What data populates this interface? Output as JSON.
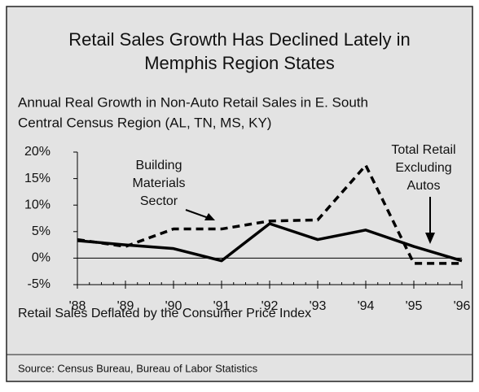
{
  "chart_data": {
    "type": "line",
    "title": [
      "Retail Sales Growth Has Declined Lately in",
      "Memphis Region States"
    ],
    "subtitle": [
      "Annual Real Growth in Non-Auto Retail Sales in E. South",
      "Central Census Region (AL, TN, MS, KY)"
    ],
    "categories": [
      "'88",
      "'89",
      "'90",
      "'91",
      "'92",
      "'93",
      "'94",
      "'95",
      "'96"
    ],
    "series": [
      {
        "name": "Total Retail Excluding Autos",
        "color": "#000000",
        "dash": "solid",
        "values": [
          3.3,
          2.5,
          1.8,
          -0.5,
          6.5,
          3.5,
          5.3,
          2.2,
          -0.5
        ]
      },
      {
        "name": "Building Materials Sector",
        "color": "#000000",
        "dash": "dashed",
        "values": [
          3.5,
          2.2,
          5.5,
          5.5,
          7.0,
          7.2,
          17.5,
          -1.0,
          -1.0
        ]
      }
    ],
    "annotations": [
      [
        "Building",
        "Materials",
        "Sector"
      ],
      [
        "Total Retail",
        "Excluding",
        "Autos"
      ]
    ],
    "ylim": [
      -5,
      20
    ],
    "yticks": [
      {
        "value": -5,
        "label": "-5%"
      },
      {
        "value": 0,
        "label": "0%"
      },
      {
        "value": 5,
        "label": "5%"
      },
      {
        "value": 10,
        "label": "10%"
      },
      {
        "value": 15,
        "label": "15%"
      },
      {
        "value": 20,
        "label": "20%"
      }
    ],
    "note": "Retail Sales Deflated by the Consumer Price Index",
    "source": "Source: Census Bureau, Bureau of Labor Statistics"
  }
}
